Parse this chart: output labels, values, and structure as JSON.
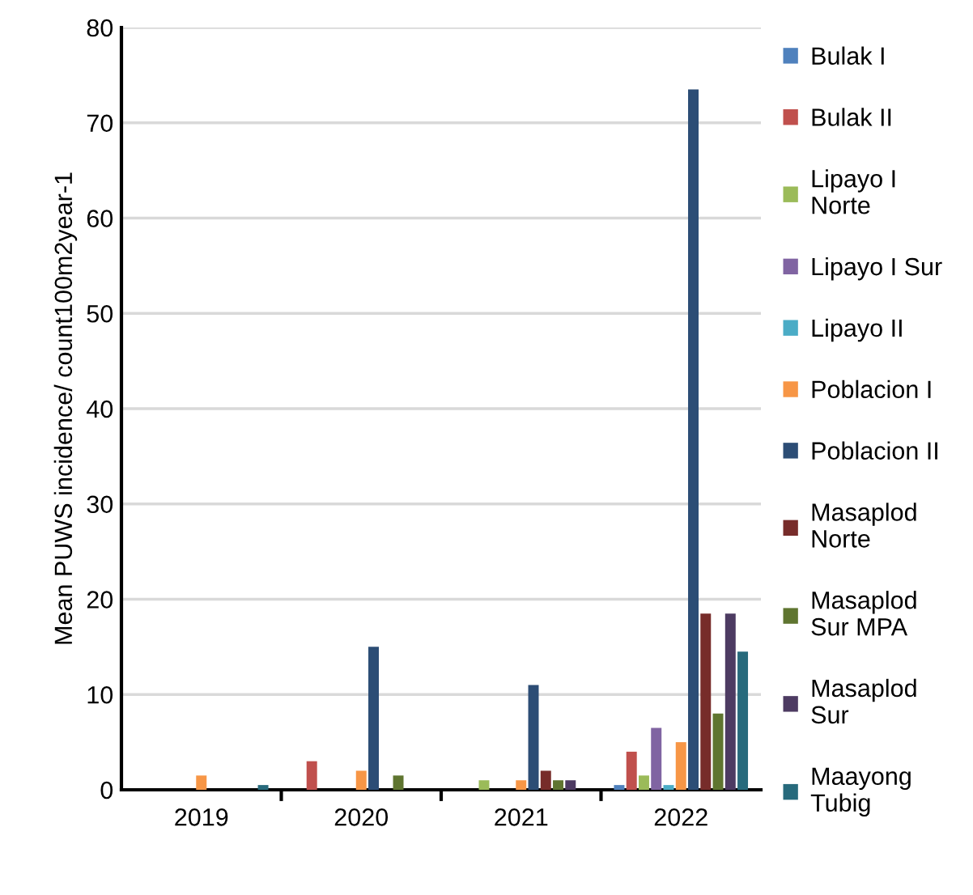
{
  "chart_data": {
    "type": "bar",
    "ylabel": "Mean PUWS incidence/ count100m2year-1",
    "categories": [
      "2019",
      "2020",
      "2021",
      "2022"
    ],
    "ylim": [
      0,
      80
    ],
    "yticks": [
      0,
      10,
      20,
      30,
      40,
      50,
      60,
      70,
      80
    ],
    "grid": "y",
    "legend": "right",
    "series": [
      {
        "name": "Bulak I",
        "color": "#4f81bd",
        "values": [
          0,
          0,
          0,
          0.5
        ]
      },
      {
        "name": "Bulak II",
        "color": "#c0504d",
        "values": [
          0,
          3,
          0,
          4
        ]
      },
      {
        "name": "Lipayo I\nNorte",
        "color": "#9bbb59",
        "values": [
          0,
          0,
          1,
          1.5
        ]
      },
      {
        "name": "Lipayo I Sur",
        "color": "#8064a2",
        "values": [
          0,
          0,
          0,
          6.5
        ]
      },
      {
        "name": "Lipayo II",
        "color": "#4bacc6",
        "values": [
          0,
          0,
          0,
          0.5
        ]
      },
      {
        "name": "Poblacion I",
        "color": "#f79646",
        "values": [
          1.5,
          2,
          1,
          5
        ]
      },
      {
        "name": "Poblacion II",
        "color": "#2c4d75",
        "values": [
          0,
          15,
          11,
          73.5
        ]
      },
      {
        "name": "Masaplod\nNorte",
        "color": "#772c2a",
        "values": [
          0,
          0,
          2,
          18.5
        ]
      },
      {
        "name": "Masaplod\nSur MPA",
        "color": "#5f7530",
        "values": [
          0,
          1.5,
          1,
          8
        ]
      },
      {
        "name": "Masaplod\nSur",
        "color": "#4d3b62",
        "values": [
          0,
          0,
          1,
          18.5
        ]
      },
      {
        "name": "Maayong\nTubig",
        "color": "#276a7c",
        "values": [
          0.5,
          0,
          0,
          14.5
        ]
      }
    ]
  }
}
